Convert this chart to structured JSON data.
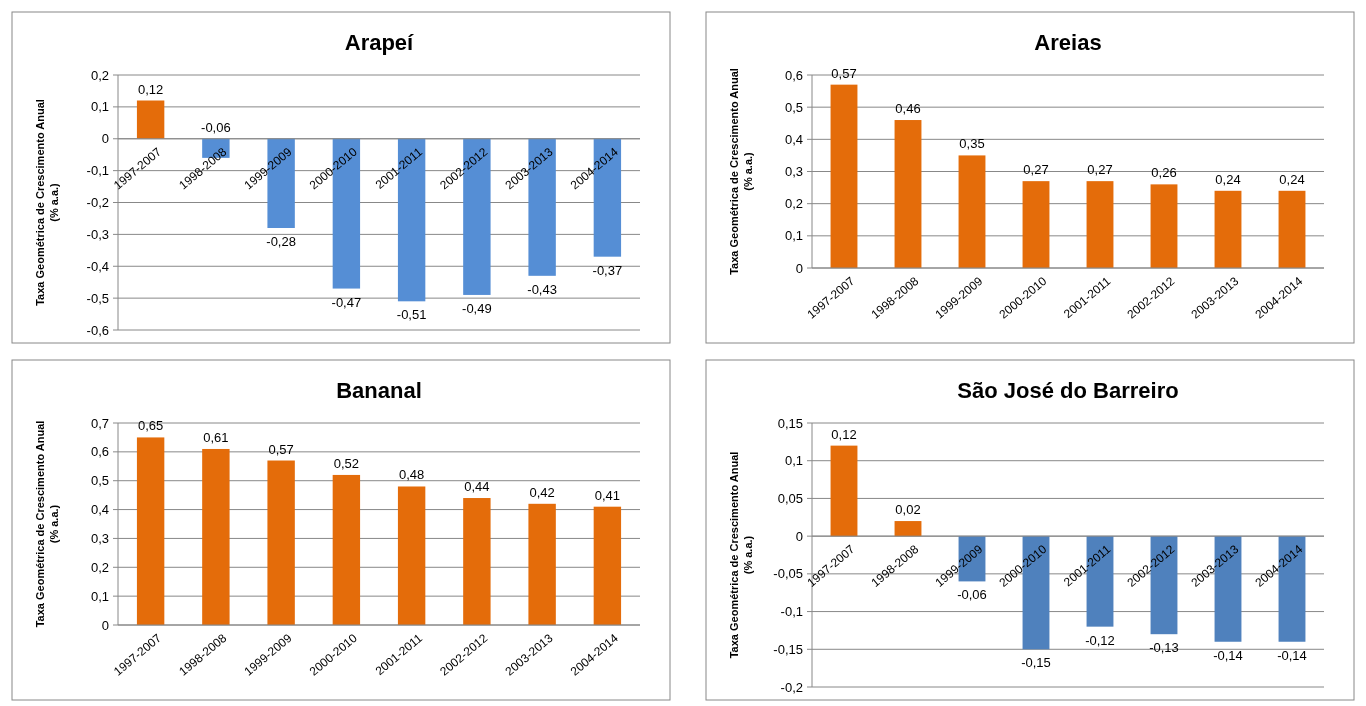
{
  "chart_data": [
    {
      "type": "bar",
      "title": "Arapeí",
      "ylabel": "Taxa Geométrica de Crescimento Anual\n(% a.a.)",
      "categories": [
        "1997-2007",
        "1998-2008",
        "1999-2009",
        "2000-2010",
        "2001-2011",
        "2002-2012",
        "2003-2013",
        "2004-2014"
      ],
      "values": [
        0.12,
        -0.06,
        -0.28,
        -0.47,
        -0.51,
        -0.49,
        -0.43,
        -0.37
      ],
      "colors": [
        "#e46c0a",
        "#558ed5",
        "#558ed5",
        "#558ed5",
        "#558ed5",
        "#558ed5",
        "#558ed5",
        "#558ed5"
      ],
      "value_labels": [
        "0,12",
        "-0,06",
        "-0,28",
        "-0,47",
        "-0,51",
        "-0,49",
        "-0,43",
        "-0,37"
      ],
      "ylim": [
        -0.6,
        0.2
      ],
      "yticks": [
        {
          "value": -0.6,
          "label": "-0,6"
        },
        {
          "value": -0.5,
          "label": "-0,5"
        },
        {
          "value": -0.4,
          "label": "-0,4"
        },
        {
          "value": -0.3,
          "label": "-0,3"
        },
        {
          "value": -0.2,
          "label": "-0,2"
        },
        {
          "value": -0.1,
          "label": "-0,1"
        },
        {
          "value": 0,
          "label": "0"
        },
        {
          "value": 0.1,
          "label": "0,1"
        },
        {
          "value": 0.2,
          "label": "0,2"
        }
      ],
      "grid": "y"
    },
    {
      "type": "bar",
      "title": "Areias",
      "ylabel": "Taxa Geométrica de Crescimento Anual\n(% a.a.)",
      "categories": [
        "1997-2007",
        "1998-2008",
        "1999-2009",
        "2000-2010",
        "2001-2011",
        "2002-2012",
        "2003-2013",
        "2004-2014"
      ],
      "values": [
        0.57,
        0.46,
        0.35,
        0.27,
        0.27,
        0.26,
        0.24,
        0.24
      ],
      "colors": [
        "#e46c0a",
        "#e46c0a",
        "#e46c0a",
        "#e46c0a",
        "#e46c0a",
        "#e46c0a",
        "#e46c0a",
        "#e46c0a"
      ],
      "value_labels": [
        "0,57",
        "0,46",
        "0,35",
        "0,27",
        "0,27",
        "0,26",
        "0,24",
        "0,24"
      ],
      "ylim": [
        0,
        0.6
      ],
      "yticks": [
        {
          "value": 0,
          "label": "0"
        },
        {
          "value": 0.1,
          "label": "0,1"
        },
        {
          "value": 0.2,
          "label": "0,2"
        },
        {
          "value": 0.3,
          "label": "0,3"
        },
        {
          "value": 0.4,
          "label": "0,4"
        },
        {
          "value": 0.5,
          "label": "0,5"
        },
        {
          "value": 0.6,
          "label": "0,6"
        }
      ],
      "grid": "y"
    },
    {
      "type": "bar",
      "title": "Bananal",
      "ylabel": "Taxa Geométrica de Crescimento Anual\n(% a.a.)",
      "categories": [
        "1997-2007",
        "1998-2008",
        "1999-2009",
        "2000-2010",
        "2001-2011",
        "2002-2012",
        "2003-2013",
        "2004-2014"
      ],
      "values": [
        0.65,
        0.61,
        0.57,
        0.52,
        0.48,
        0.44,
        0.42,
        0.41
      ],
      "colors": [
        "#e46c0a",
        "#e46c0a",
        "#e46c0a",
        "#e46c0a",
        "#e46c0a",
        "#e46c0a",
        "#e46c0a",
        "#e46c0a"
      ],
      "value_labels": [
        "0,65",
        "0,61",
        "0,57",
        "0,52",
        "0,48",
        "0,44",
        "0,42",
        "0,41"
      ],
      "ylim": [
        0,
        0.7
      ],
      "yticks": [
        {
          "value": 0,
          "label": "0"
        },
        {
          "value": 0.1,
          "label": "0,1"
        },
        {
          "value": 0.2,
          "label": "0,2"
        },
        {
          "value": 0.3,
          "label": "0,3"
        },
        {
          "value": 0.4,
          "label": "0,4"
        },
        {
          "value": 0.5,
          "label": "0,5"
        },
        {
          "value": 0.6,
          "label": "0,6"
        },
        {
          "value": 0.7,
          "label": "0,7"
        }
      ],
      "grid": "y"
    },
    {
      "type": "bar",
      "title": "São José do Barreiro",
      "ylabel": "Taxa Geométrica de Crescimento Anual\n(% a.a.)",
      "categories": [
        "1997-2007",
        "1998-2008",
        "1999-2009",
        "2000-2010",
        "2001-2011",
        "2002-2012",
        "2003-2013",
        "2004-2014"
      ],
      "values": [
        0.12,
        0.02,
        -0.06,
        -0.15,
        -0.12,
        -0.13,
        -0.14,
        -0.14
      ],
      "colors": [
        "#e46c0a",
        "#e46c0a",
        "#4f81bd",
        "#4f81bd",
        "#4f81bd",
        "#4f81bd",
        "#4f81bd",
        "#4f81bd"
      ],
      "value_labels": [
        "0,12",
        "0,02",
        "-0,06",
        "-0,15",
        "-0,12",
        "-0,13",
        "-0,14",
        "-0,14"
      ],
      "ylim": [
        -0.2,
        0.15
      ],
      "yticks": [
        {
          "value": -0.2,
          "label": "-0,2"
        },
        {
          "value": -0.15,
          "label": "-0,15"
        },
        {
          "value": -0.1,
          "label": "-0,1"
        },
        {
          "value": -0.05,
          "label": "-0,05"
        },
        {
          "value": 0,
          "label": "0"
        },
        {
          "value": 0.05,
          "label": "0,05"
        },
        {
          "value": 0.1,
          "label": "0,1"
        },
        {
          "value": 0.15,
          "label": "0,15"
        }
      ],
      "grid": "y"
    }
  ]
}
